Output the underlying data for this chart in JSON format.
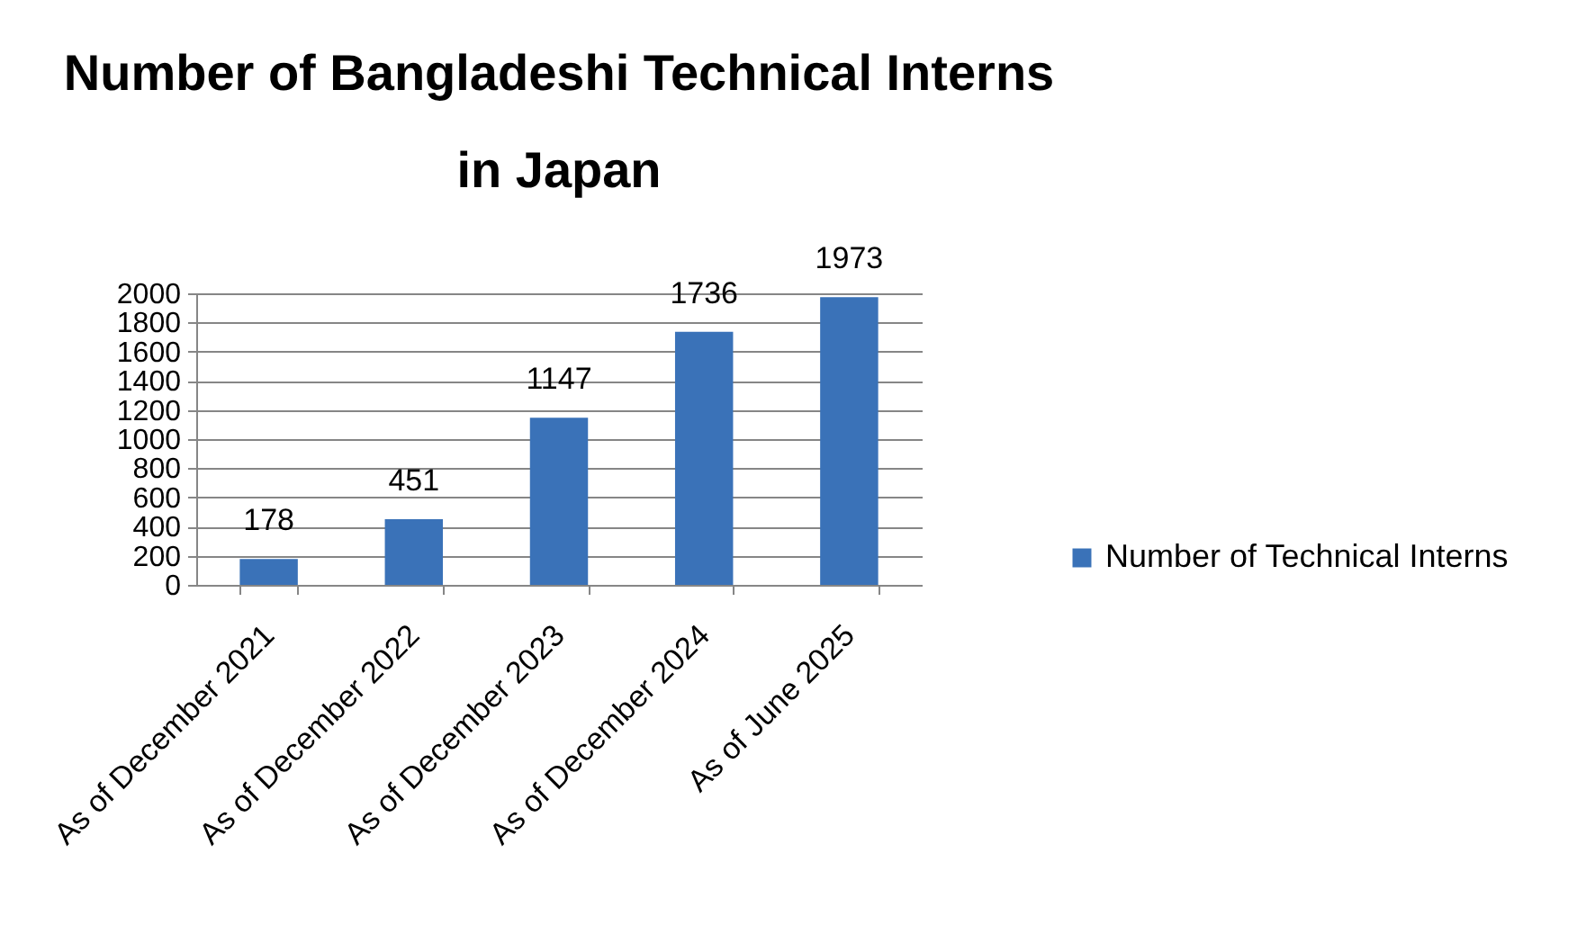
{
  "chart_data": {
    "type": "bar",
    "title": "Number of Bangladeshi Technical Interns\nin Japan",
    "categories": [
      "As of December 2021",
      "As of  December 2022",
      "As of December 2023",
      "As of December 2024",
      "As of June 2025"
    ],
    "series": [
      {
        "name": "Number of Technical Interns",
        "color": "#3a72b8",
        "values": [
          178,
          451,
          1147,
          1736,
          1973
        ]
      }
    ],
    "ylim": [
      0,
      2000
    ],
    "yticks": [
      0,
      200,
      400,
      600,
      800,
      1000,
      1200,
      1400,
      1600,
      1800,
      2000
    ],
    "grid": "y",
    "legend": "right",
    "data_labels": true
  }
}
